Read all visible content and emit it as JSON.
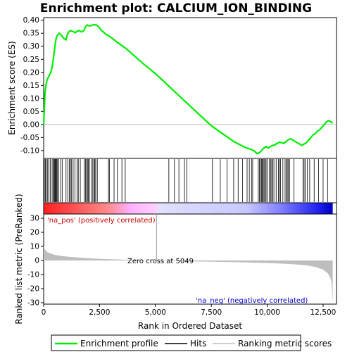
{
  "chart_data": {
    "type": "line",
    "title": "Enrichment plot: CALCIUM_ION_BINDING",
    "xlabel": "Rank in Ordered Dataset",
    "es_panel": {
      "ylabel": "Enrichment score (ES)",
      "ylim": [
        -0.13,
        0.41
      ],
      "yticks": [
        -0.1,
        -0.05,
        0.0,
        0.05,
        0.1,
        0.15,
        0.2,
        0.25,
        0.3,
        0.35,
        0.4
      ],
      "ytick_labels": [
        "-0.10",
        "-0.05",
        "0.00",
        "0.05",
        "0.10",
        "0.15",
        "0.20",
        "0.25",
        "0.30",
        "0.35",
        "0.40"
      ],
      "series_name": "Enrichment profile",
      "x": [
        0,
        30,
        60,
        100,
        150,
        200,
        260,
        320,
        380,
        430,
        480,
        520,
        560,
        600,
        650,
        700,
        760,
        820,
        900,
        1000,
        1060,
        1120,
        1200,
        1280,
        1360,
        1420,
        1500,
        1600,
        1700,
        1800,
        1870,
        1950,
        2050,
        2150,
        2250,
        2350,
        2450,
        2600,
        2800,
        3000,
        3300,
        3700,
        4100,
        4500,
        5000,
        5500,
        6000,
        6500,
        7000,
        7500,
        8000,
        8500,
        9000,
        9200,
        9400,
        9550,
        9650,
        9750,
        9850,
        9950,
        10050,
        10150,
        10250,
        10350,
        10450,
        10550,
        10650,
        10750,
        10850,
        10950,
        11050,
        11150,
        11250,
        11350,
        11450,
        11550,
        11650,
        11750,
        11850,
        11950,
        12050,
        12150,
        12250,
        12350,
        12450,
        12550,
        12650,
        12750,
        12850,
        12930
      ],
      "y": [
        0.0,
        0.06,
        0.12,
        0.15,
        0.17,
        0.18,
        0.19,
        0.2,
        0.22,
        0.25,
        0.28,
        0.31,
        0.33,
        0.34,
        0.345,
        0.35,
        0.345,
        0.34,
        0.33,
        0.325,
        0.345,
        0.355,
        0.36,
        0.358,
        0.355,
        0.352,
        0.358,
        0.36,
        0.355,
        0.36,
        0.375,
        0.382,
        0.378,
        0.38,
        0.383,
        0.382,
        0.376,
        0.36,
        0.345,
        0.335,
        0.315,
        0.29,
        0.26,
        0.23,
        0.195,
        0.155,
        0.115,
        0.075,
        0.035,
        -0.005,
        -0.035,
        -0.065,
        -0.088,
        -0.093,
        -0.1,
        -0.112,
        -0.108,
        -0.1,
        -0.09,
        -0.085,
        -0.09,
        -0.085,
        -0.08,
        -0.078,
        -0.072,
        -0.068,
        -0.07,
        -0.072,
        -0.065,
        -0.058,
        -0.055,
        -0.06,
        -0.065,
        -0.07,
        -0.075,
        -0.08,
        -0.075,
        -0.07,
        -0.06,
        -0.05,
        -0.04,
        -0.035,
        -0.025,
        -0.02,
        -0.01,
        0.0,
        0.01,
        0.015,
        0.01,
        0.005
      ]
    },
    "hits": [
      30,
      80,
      120,
      180,
      240,
      300,
      380,
      430,
      470,
      500,
      520,
      550,
      580,
      620,
      680,
      760,
      830,
      1000,
      1080,
      1150,
      1200,
      1250,
      1320,
      1400,
      1500,
      1550,
      1640,
      1820,
      1870,
      1920,
      1960,
      2000,
      2050,
      2150,
      2200,
      2260,
      2290,
      2330,
      2400,
      2900,
      2940,
      3150,
      3300,
      3500,
      3650,
      5600,
      5850,
      6050,
      6300,
      6400,
      7550,
      7900,
      8200,
      8500,
      8700,
      8900,
      9100,
      9200,
      9300,
      9350,
      9600,
      9650,
      9700,
      9750,
      9780,
      9820,
      9860,
      9900,
      9950,
      10000,
      10100,
      10150,
      10200,
      10250,
      10300,
      10400,
      10500,
      10550,
      10600,
      10700,
      10800,
      10850,
      10900,
      10950,
      11000,
      11200,
      11600,
      11650,
      11700,
      11800,
      11900,
      12100,
      12300,
      12500,
      12700
    ],
    "metric_panel": {
      "ylabel": "Ranked list metric (PreRanked)",
      "ylim": [
        -31,
        33
      ],
      "yticks": [
        -30,
        -20,
        -10,
        0,
        10,
        20,
        30
      ],
      "ytick_labels": [
        "-30",
        "-20",
        "-10",
        "0",
        "10",
        "20",
        "30"
      ],
      "series_name": "Ranking metric scores",
      "x": [
        0,
        50,
        150,
        300,
        500,
        800,
        1200,
        1800,
        2500,
        3500,
        5049,
        6500,
        8000,
        9000,
        10000,
        10800,
        11300,
        11800,
        12200,
        12500,
        12700,
        12820,
        12880,
        12930
      ],
      "y": [
        10,
        8,
        6,
        5,
        4,
        3.2,
        2.5,
        1.8,
        1.2,
        0.6,
        0,
        -0.6,
        -1.0,
        -1.4,
        -1.8,
        -2.3,
        -2.8,
        -3.5,
        -4.8,
        -6.5,
        -9,
        -12,
        -16,
        -30
      ],
      "annotations": {
        "pos_label": "'na_pos' (positively correlated)",
        "neg_label": "'na_neg' (negatively correlated)",
        "zero_label": "Zero cross at 5049"
      }
    },
    "xlim": [
      0,
      13100
    ],
    "xticks": [
      0,
      2500,
      5000,
      7500,
      10000,
      12500
    ],
    "xtick_labels": [
      "0",
      "2,500",
      "5,000",
      "7,500",
      "10,000",
      "12,500"
    ],
    "zero_cross": 5049,
    "n_genes": 12930,
    "legend": {
      "placement": "bottom",
      "items": [
        "Enrichment profile",
        "Hits",
        "Ranking metric scores"
      ]
    },
    "colors": {
      "profile": "#00ff00",
      "hits": "#000000",
      "metric": "#bebebe",
      "pos": "#ff0000",
      "neg": "#0000ff",
      "mid": "#ffffff"
    }
  }
}
